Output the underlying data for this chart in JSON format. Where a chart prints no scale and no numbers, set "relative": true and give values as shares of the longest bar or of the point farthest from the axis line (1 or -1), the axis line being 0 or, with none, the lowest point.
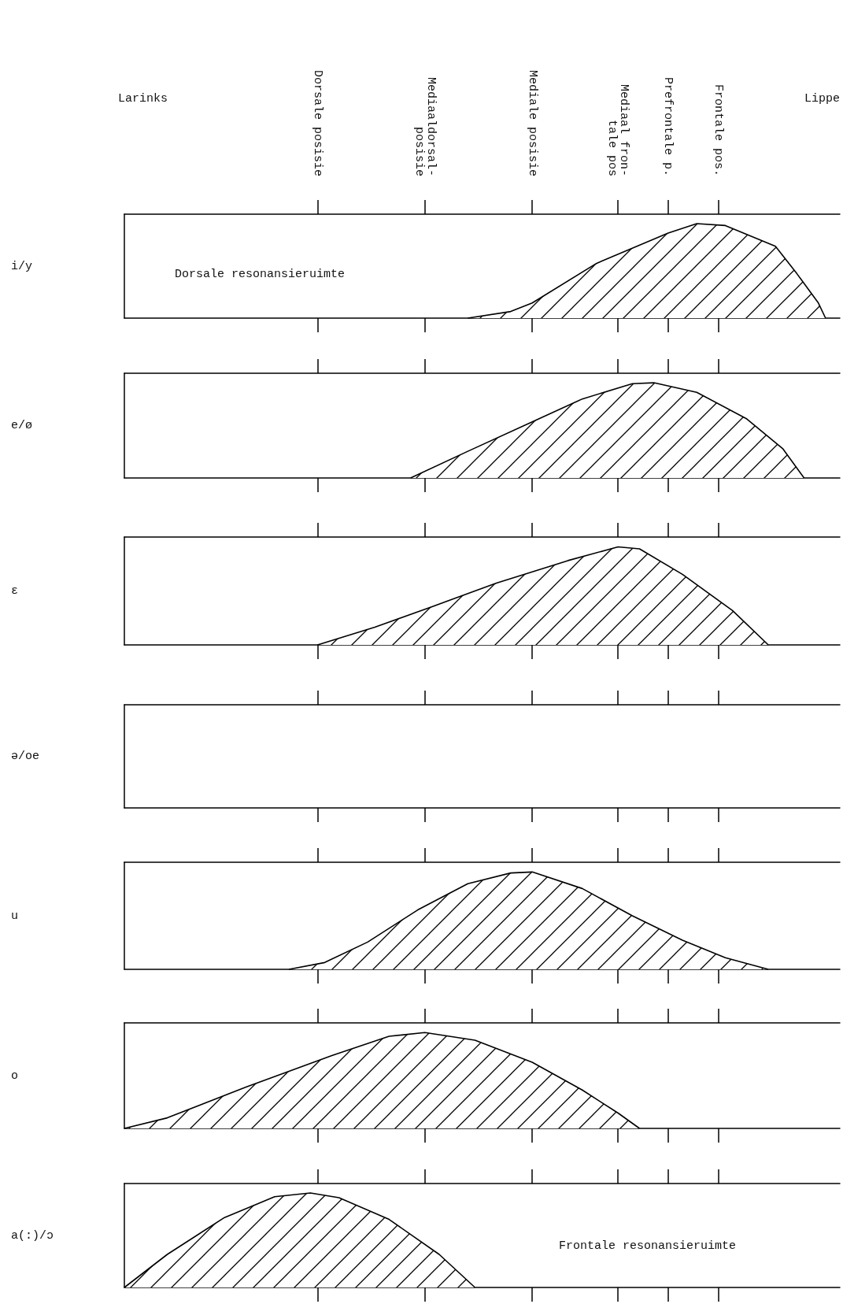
{
  "chart_data": [
    {
      "type": "area",
      "relative": true,
      "ylabel": "i/y",
      "categories": [
        null,
        null,
        null,
        null,
        null,
        null,
        null,
        null,
        null,
        null,
        null,
        null,
        null,
        null,
        null,
        null,
        null,
        null,
        null,
        null,
        null,
        null,
        null,
        null,
        null,
        null,
        null,
        "Dorsale posisie",
        null,
        null,
        null,
        null,
        null,
        null,
        null,
        null,
        null,
        null,
        null,
        null,
        null,
        null,
        "Mediaaldorsal-\nposisie",
        null,
        null,
        null,
        null,
        null,
        null,
        null,
        null,
        null,
        null,
        null,
        null,
        null,
        null,
        "Mediale posisie",
        null,
        null,
        null,
        null,
        null,
        null,
        null,
        null,
        null,
        null,
        null,
        "Mediaal fron-\ntale pos",
        null,
        null,
        null,
        null,
        null,
        null,
        "Prefrontale p.",
        null,
        null,
        null,
        null,
        null,
        null,
        "Frontale pos.",
        null,
        null,
        null,
        null,
        null,
        null,
        null,
        null,
        null,
        null,
        null,
        null,
        null,
        null,
        null,
        null,
        null
      ],
      "annotations": [
        "Larinks",
        "Lippe",
        "Dorsale resonansieruimte"
      ],
      "series": [
        {
          "color": "#000000",
          "values": [
            null,
            null,
            null,
            null,
            null,
            null,
            null,
            null,
            null,
            null,
            null,
            null,
            null,
            null,
            null,
            null,
            null,
            null,
            null,
            null,
            null,
            null,
            null,
            null,
            null,
            null,
            null,
            null,
            null,
            null,
            null,
            null,
            null,
            null,
            null,
            null,
            null,
            null,
            null,
            null,
            null,
            null,
            null,
            null,
            null,
            null,
            null,
            null,
            0,
            null,
            null,
            null,
            null,
            null,
            0.07,
            null,
            null,
            0.16,
            null,
            null,
            null,
            null,
            null,
            null,
            null,
            null,
            0.58,
            null,
            null,
            null,
            null,
            null,
            null,
            null,
            null,
            null,
            0.9,
            null,
            null,
            null,
            1,
            null,
            null,
            null,
            0.98,
            null,
            null,
            null,
            null,
            null,
            null,
            0.76,
            null,
            null,
            0.47,
            null,
            null,
            0.16,
            0,
            null,
            null
          ]
        }
      ]
    },
    {
      "type": "area",
      "relative": true,
      "ylabel": "e/ø",
      "categories": [
        null,
        null,
        null,
        null,
        null,
        null,
        null,
        null,
        null,
        null,
        null,
        null,
        null,
        null,
        null,
        null,
        null,
        null,
        null,
        null,
        null,
        null,
        null,
        null,
        null,
        null,
        null,
        null,
        null,
        null,
        null,
        null,
        null,
        null,
        null,
        null,
        null,
        null,
        null,
        null,
        null,
        null,
        null,
        null,
        null,
        null,
        null,
        null,
        null,
        null,
        null,
        null,
        null,
        null,
        null,
        null,
        null,
        null,
        null,
        null,
        null,
        null,
        null,
        null,
        null,
        null,
        null,
        null,
        null,
        null,
        null,
        null,
        null,
        null,
        null,
        null,
        null,
        null,
        null,
        null,
        null,
        null,
        null,
        null,
        null,
        null,
        null,
        null,
        null,
        null,
        null,
        null,
        null,
        null,
        null,
        null,
        null,
        null,
        null,
        null,
        null
      ],
      "series": [
        {
          "color": "#000000",
          "values": [
            null,
            null,
            null,
            null,
            null,
            null,
            null,
            null,
            null,
            null,
            null,
            null,
            null,
            null,
            null,
            null,
            null,
            null,
            null,
            null,
            null,
            null,
            null,
            null,
            null,
            null,
            null,
            null,
            null,
            null,
            null,
            null,
            null,
            null,
            null,
            null,
            null,
            null,
            null,
            null,
            0,
            null,
            null,
            null,
            null,
            null,
            null,
            null,
            0.28,
            null,
            null,
            null,
            null,
            null,
            null,
            null,
            null,
            0.59,
            null,
            null,
            null,
            null,
            null,
            null,
            0.83,
            null,
            null,
            null,
            null,
            null,
            null,
            0.99,
            null,
            null,
            1,
            null,
            null,
            null,
            null,
            null,
            0.9,
            null,
            null,
            null,
            null,
            null,
            null,
            0.62,
            null,
            null,
            null,
            null,
            0.31,
            null,
            null,
            0,
            null,
            null,
            null,
            null,
            null
          ]
        }
      ]
    },
    {
      "type": "area",
      "relative": true,
      "ylabel": "ɛ",
      "categories": [
        null,
        null,
        null,
        null,
        null,
        null,
        null,
        null,
        null,
        null,
        null,
        null,
        null,
        null,
        null,
        null,
        null,
        null,
        null,
        null,
        null,
        null,
        null,
        null,
        null,
        null,
        null,
        null,
        null,
        null,
        null,
        null,
        null,
        null,
        null,
        null,
        null,
        null,
        null,
        null,
        null,
        null,
        null,
        null,
        null,
        null,
        null,
        null,
        null,
        null,
        null,
        null,
        null,
        null,
        null,
        null,
        null,
        null,
        null,
        null,
        null,
        null,
        null,
        null,
        null,
        null,
        null,
        null,
        null,
        null,
        null,
        null,
        null,
        null,
        null,
        null,
        null,
        null,
        null,
        null,
        null,
        null,
        null,
        null,
        null,
        null,
        null,
        null,
        null,
        null,
        null,
        null,
        null,
        null,
        null,
        null,
        null,
        null,
        null,
        null,
        null
      ],
      "series": [
        {
          "color": "#000000",
          "values": [
            null,
            null,
            null,
            null,
            null,
            null,
            null,
            null,
            null,
            null,
            null,
            null,
            null,
            null,
            null,
            null,
            null,
            null,
            null,
            null,
            null,
            null,
            null,
            null,
            null,
            null,
            null,
            0,
            null,
            null,
            null,
            null,
            null,
            null,
            null,
            0.18,
            null,
            null,
            null,
            null,
            null,
            null,
            null,
            0.39,
            null,
            null,
            null,
            null,
            null,
            null,
            null,
            null,
            0.63,
            null,
            null,
            null,
            null,
            null,
            null,
            null,
            null,
            null,
            0.86,
            null,
            null,
            null,
            null,
            null,
            null,
            1,
            null,
            null,
            0.98,
            null,
            null,
            null,
            null,
            null,
            0.72,
            null,
            null,
            null,
            null,
            null,
            null,
            0.35,
            null,
            null,
            null,
            null,
            0,
            null,
            null,
            null,
            null,
            null,
            null,
            null,
            null,
            null,
            null
          ]
        }
      ]
    },
    {
      "type": "other",
      "ylabel": "ə/oe"
    },
    {
      "type": "area",
      "relative": true,
      "ylabel": "u",
      "categories": [
        null,
        null,
        null,
        null,
        null,
        null,
        null,
        null,
        null,
        null,
        null,
        null,
        null,
        null,
        null,
        null,
        null,
        null,
        null,
        null,
        null,
        null,
        null,
        null,
        null,
        null,
        null,
        null,
        null,
        null,
        null,
        null,
        null,
        null,
        null,
        null,
        null,
        null,
        null,
        null,
        null,
        null,
        null,
        null,
        null,
        null,
        null,
        null,
        null,
        null,
        null,
        null,
        null,
        null,
        null,
        null,
        null,
        null,
        null,
        null,
        null,
        null,
        null,
        null,
        null,
        null,
        null,
        null,
        null,
        null,
        null,
        null,
        null,
        null,
        null,
        null,
        null,
        null,
        null,
        null,
        null,
        null,
        null,
        null,
        null,
        null,
        null,
        null,
        null,
        null,
        null,
        null,
        null,
        null,
        null,
        null,
        null,
        null,
        null,
        null,
        null
      ],
      "series": [
        {
          "color": "#000000",
          "values": [
            null,
            null,
            null,
            null,
            null,
            null,
            null,
            null,
            null,
            null,
            null,
            null,
            null,
            null,
            null,
            null,
            null,
            null,
            null,
            null,
            null,
            null,
            null,
            0,
            null,
            null,
            null,
            null,
            0.07,
            null,
            null,
            null,
            null,
            null,
            0.28,
            null,
            null,
            null,
            null,
            null,
            null,
            0.61,
            null,
            null,
            null,
            null,
            null,
            null,
            0.88,
            null,
            null,
            null,
            null,
            null,
            0.99,
            null,
            null,
            1,
            null,
            null,
            null,
            null,
            null,
            null,
            0.83,
            null,
            null,
            null,
            null,
            null,
            null,
            0.55,
            null,
            null,
            null,
            null,
            null,
            null,
            0.3,
            null,
            null,
            null,
            null,
            null,
            0.12,
            null,
            null,
            null,
            null,
            null,
            0,
            null,
            null,
            null,
            null,
            null,
            null,
            null,
            null,
            null,
            null
          ]
        }
      ]
    },
    {
      "type": "area",
      "relative": true,
      "ylabel": "o",
      "categories": [
        null,
        null,
        null,
        null,
        null,
        null,
        null,
        null,
        null,
        null,
        null,
        null,
        null,
        null,
        null,
        null,
        null,
        null,
        null,
        null,
        null,
        null,
        null,
        null,
        null,
        null,
        null,
        null,
        null,
        null,
        null,
        null,
        null,
        null,
        null,
        null,
        null,
        null,
        null,
        null,
        null,
        null,
        null,
        null,
        null,
        null,
        null,
        null,
        null,
        null,
        null,
        null,
        null,
        null,
        null,
        null,
        null,
        null,
        null,
        null,
        null,
        null,
        null,
        null,
        null,
        null,
        null,
        null,
        null,
        null,
        null,
        null,
        null,
        null,
        null,
        null,
        null,
        null,
        null,
        null,
        null,
        null,
        null,
        null,
        null,
        null,
        null,
        null,
        null,
        null,
        null,
        null,
        null,
        null,
        null,
        null,
        null,
        null,
        null,
        null,
        null
      ],
      "series": [
        {
          "color": "#000000",
          "values": [
            0,
            null,
            null,
            null,
            null,
            null,
            0.11,
            null,
            null,
            null,
            null,
            null,
            null,
            null,
            null,
            null,
            null,
            0.43,
            null,
            null,
            null,
            null,
            null,
            null,
            null,
            null,
            null,
            null,
            null,
            0.76,
            null,
            null,
            null,
            null,
            null,
            null,
            null,
            0.96,
            null,
            null,
            null,
            null,
            1,
            null,
            null,
            null,
            null,
            null,
            null,
            0.92,
            null,
            null,
            null,
            null,
            null,
            null,
            null,
            0.69,
            null,
            null,
            null,
            null,
            null,
            null,
            0.4,
            null,
            null,
            null,
            null,
            0.16,
            null,
            null,
            0,
            null,
            null,
            null,
            null,
            null,
            null,
            null,
            null,
            null,
            null,
            null,
            null,
            null,
            null,
            null,
            null,
            null,
            null,
            null,
            null,
            null,
            null,
            null,
            null,
            null,
            null,
            null,
            null
          ]
        }
      ]
    },
    {
      "type": "area",
      "relative": true,
      "ylabel": "a(:)/ɔ",
      "categories": [
        null,
        null,
        null,
        null,
        null,
        null,
        null,
        null,
        null,
        null,
        null,
        null,
        null,
        null,
        null,
        null,
        null,
        null,
        null,
        null,
        null,
        null,
        null,
        null,
        null,
        null,
        null,
        null,
        null,
        null,
        null,
        null,
        null,
        null,
        null,
        null,
        null,
        null,
        null,
        null,
        null,
        null,
        null,
        null,
        null,
        null,
        null,
        null,
        null,
        null,
        null,
        null,
        null,
        null,
        null,
        null,
        null,
        null,
        null,
        null,
        null,
        null,
        null,
        null,
        null,
        null,
        null,
        null,
        null,
        null,
        null,
        null,
        null,
        null,
        null,
        null,
        null,
        null,
        null,
        null,
        null,
        null,
        null,
        null,
        null,
        null,
        null,
        null,
        null,
        null,
        null,
        null,
        null,
        null,
        null,
        null,
        null,
        null,
        null,
        null,
        null
      ],
      "annotations": [
        "Frontale resonansieruimte"
      ],
      "series": [
        {
          "color": "#000000",
          "values": [
            0,
            null,
            null,
            null,
            null,
            null,
            0.35,
            null,
            null,
            null,
            null,
            null,
            null,
            null,
            0.74,
            null,
            null,
            null,
            null,
            null,
            null,
            0.96,
            null,
            null,
            null,
            null,
            1,
            null,
            null,
            null,
            0.95,
            null,
            null,
            null,
            null,
            null,
            null,
            0.72,
            null,
            null,
            null,
            null,
            null,
            null,
            0.35,
            null,
            null,
            null,
            null,
            0,
            null,
            null,
            null,
            null,
            null,
            null,
            null,
            null,
            null,
            null,
            null,
            null,
            null,
            null,
            null,
            null,
            null,
            null,
            null,
            null,
            null,
            null,
            null,
            null,
            null,
            null,
            null,
            null,
            null,
            null,
            null,
            null,
            null,
            null,
            null,
            null,
            null,
            null,
            null,
            null,
            null,
            null,
            null,
            null,
            null,
            null,
            null,
            null,
            null,
            null,
            null
          ]
        }
      ]
    }
  ]
}
